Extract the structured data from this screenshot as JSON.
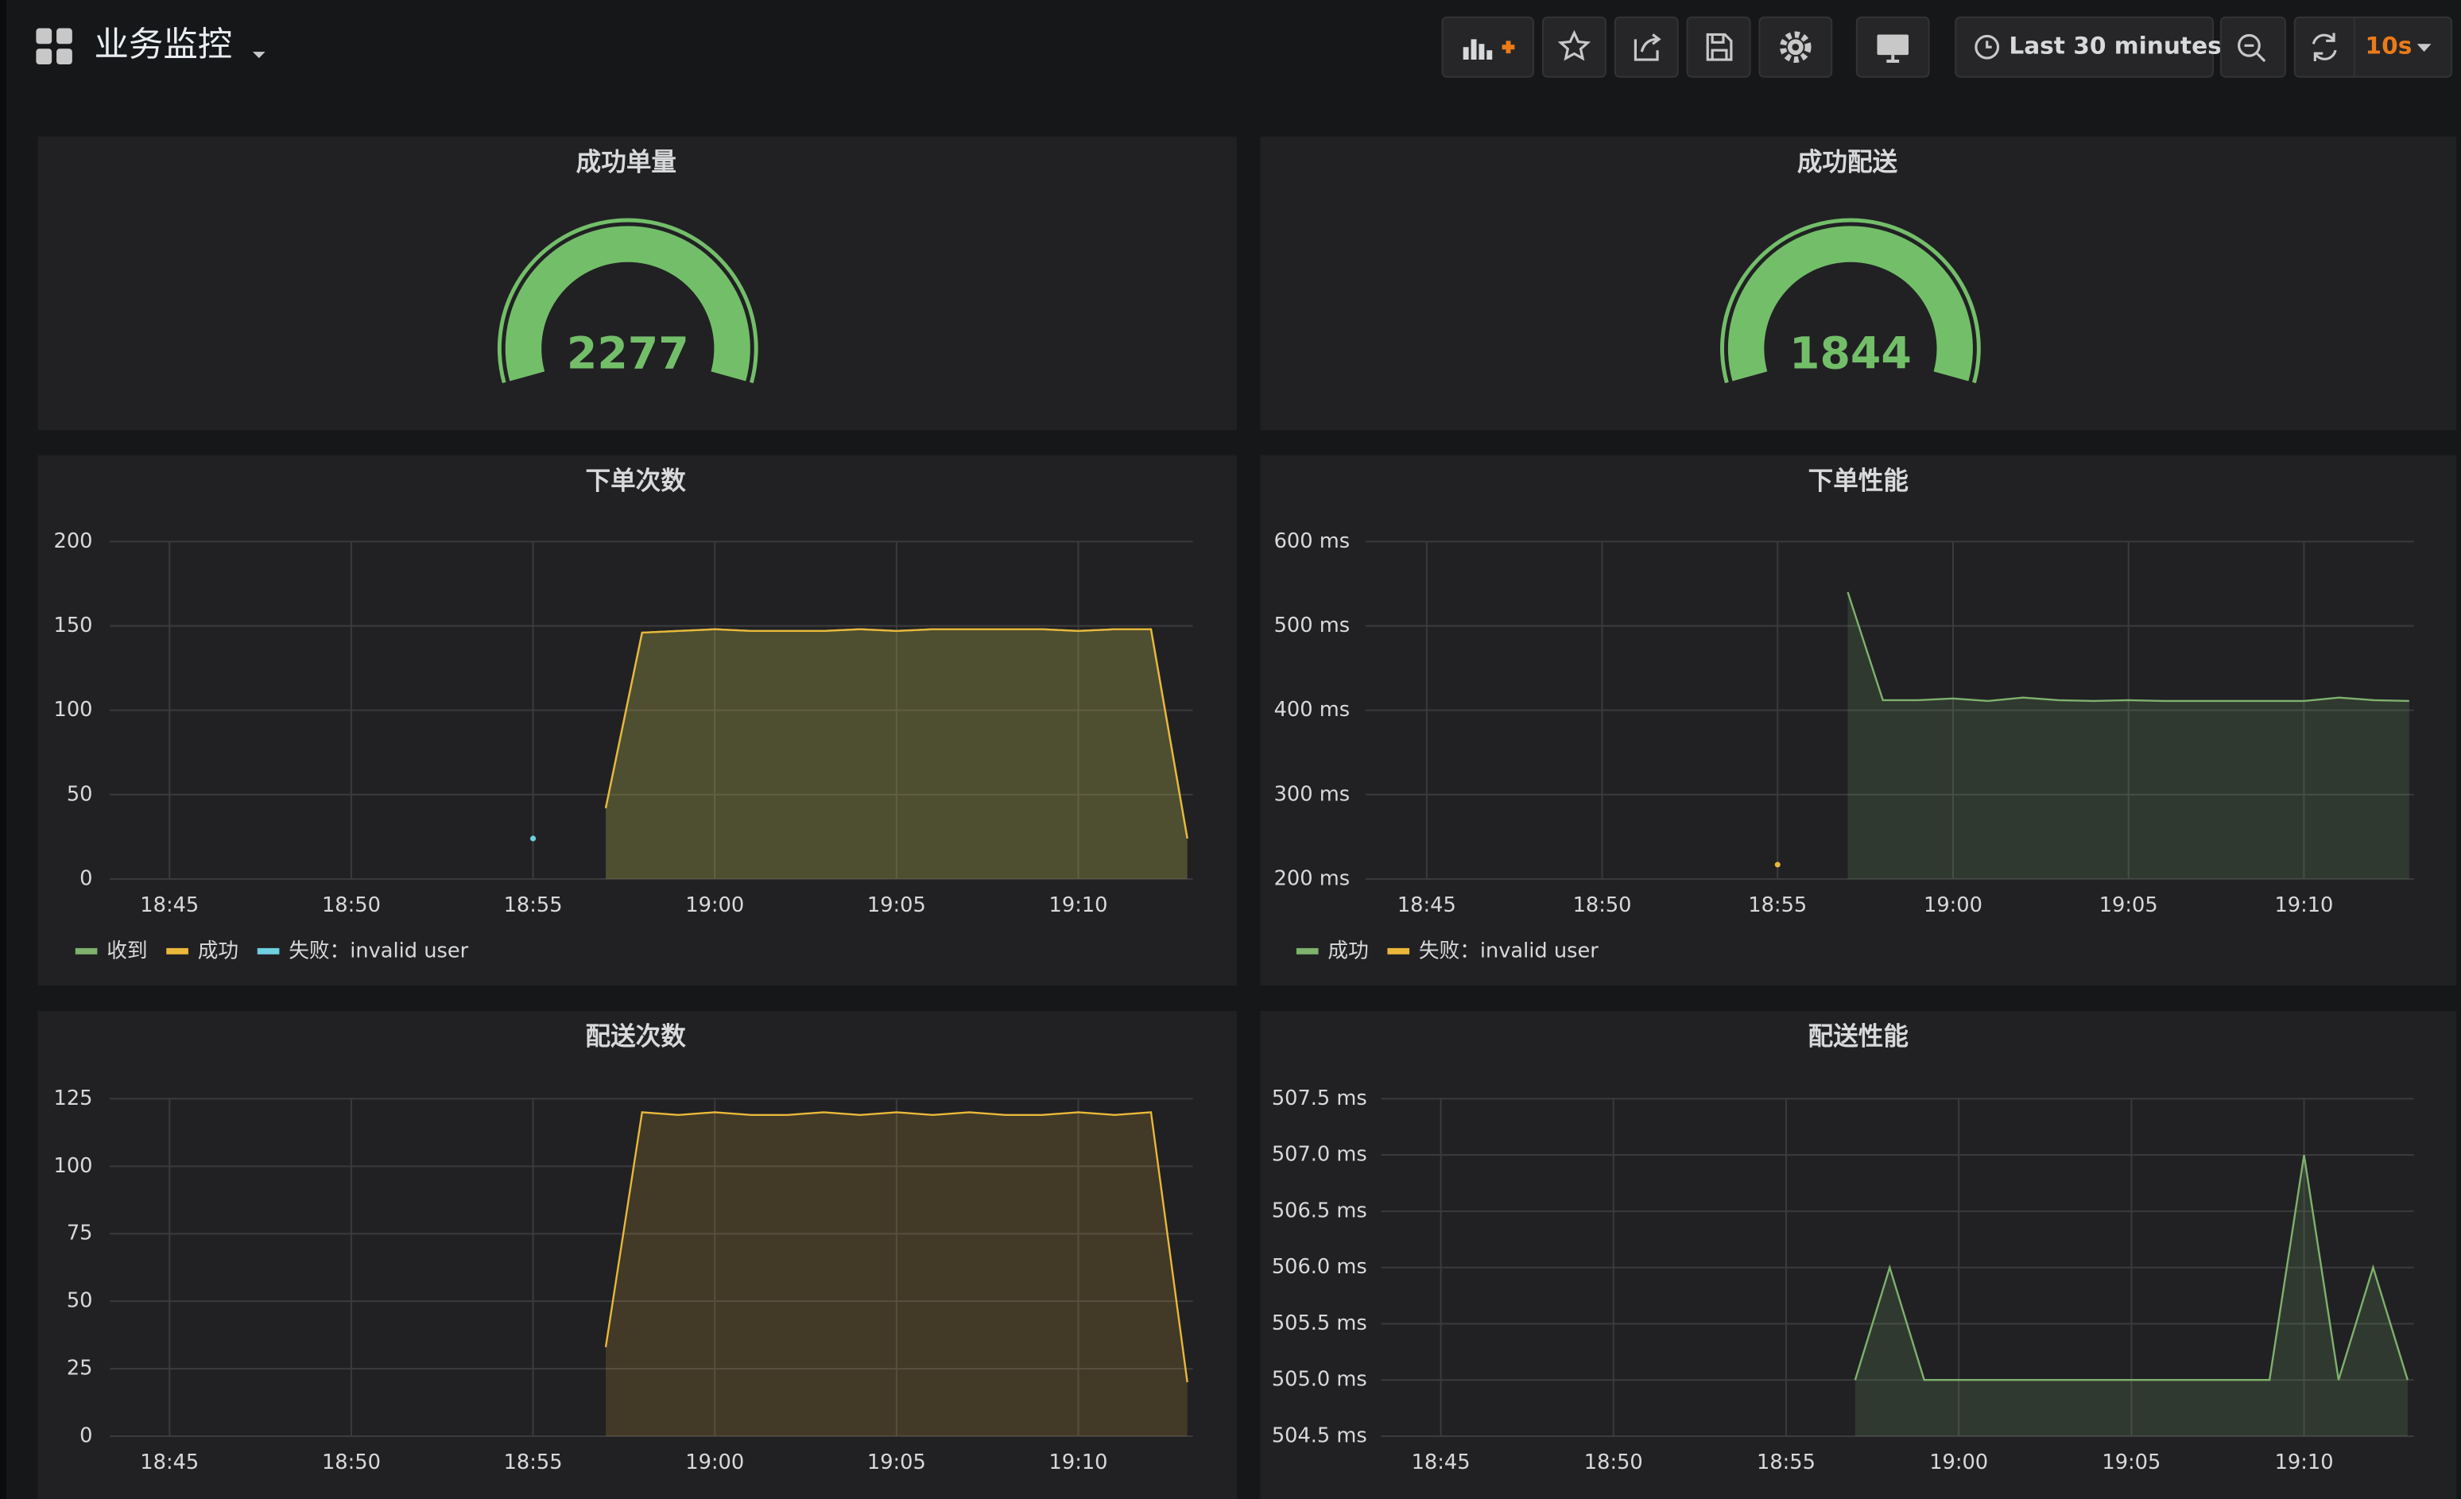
{
  "header": {
    "title": "业务监控",
    "time_range": "Last 30 minutes",
    "refresh": "10s"
  },
  "gauges": [
    {
      "title": "成功单量",
      "value": 2277,
      "color": "#73bf69"
    },
    {
      "title": "成功配送",
      "value": 1844,
      "color": "#73bf69"
    }
  ],
  "chart_data": [
    {
      "type": "line",
      "title": "下单次数",
      "x": [
        "18:55",
        "18:56",
        "18:57",
        "18:58",
        "18:59",
        "19:00",
        "19:01",
        "19:02",
        "19:03",
        "19:04",
        "19:05",
        "19:06",
        "19:07",
        "19:08",
        "19:09",
        "19:10",
        "19:11",
        "19:12",
        "19:13"
      ],
      "series": [
        {
          "name": "收到",
          "color": "#7eb26d",
          "fill": true,
          "values": [
            null,
            null,
            42,
            146,
            147,
            148,
            147,
            147,
            147,
            148,
            147,
            148,
            148,
            148,
            148,
            147,
            148,
            148,
            24
          ]
        },
        {
          "name": "成功",
          "color": "#eab839",
          "fill": true,
          "values": [
            null,
            null,
            42,
            146,
            147,
            148,
            147,
            147,
            147,
            148,
            147,
            148,
            148,
            148,
            148,
            147,
            148,
            148,
            24
          ]
        },
        {
          "name": "失败：invalid user",
          "color": "#6ed0e0",
          "fill": false,
          "values": [
            24,
            null,
            null,
            null,
            null,
            null,
            null,
            null,
            null,
            null,
            null,
            null,
            null,
            null,
            null,
            null,
            null,
            null,
            null
          ]
        }
      ],
      "xlim": [
        "18:43",
        "19:13"
      ],
      "xticks": [
        "18:45",
        "18:50",
        "18:55",
        "19:00",
        "19:05",
        "19:10"
      ],
      "ylim": [
        0,
        200
      ],
      "yticks": [
        0,
        50,
        100,
        150,
        200
      ],
      "grid": true
    },
    {
      "type": "line",
      "title": "下单性能",
      "x": [
        "18:55",
        "18:56",
        "18:57",
        "18:58",
        "18:59",
        "19:00",
        "19:01",
        "19:02",
        "19:03",
        "19:04",
        "19:05",
        "19:06",
        "19:07",
        "19:08",
        "19:09",
        "19:10",
        "19:11",
        "19:12",
        "19:13"
      ],
      "series": [
        {
          "name": "成功",
          "color": "#7eb26d",
          "fill": true,
          "values": [
            null,
            null,
            540,
            412,
            412,
            414,
            411,
            415,
            412,
            411,
            412,
            411,
            411,
            411,
            411,
            411,
            415,
            412,
            411
          ]
        },
        {
          "name": "失败：invalid user",
          "color": "#eab839",
          "fill": false,
          "values": [
            217,
            null,
            null,
            null,
            null,
            null,
            null,
            null,
            null,
            null,
            null,
            null,
            null,
            null,
            null,
            null,
            null,
            null,
            null
          ]
        }
      ],
      "xlim": [
        "18:43",
        "19:13"
      ],
      "xticks": [
        "18:45",
        "18:50",
        "18:55",
        "19:00",
        "19:05",
        "19:10"
      ],
      "ylim": [
        200,
        600
      ],
      "yticks": [
        {
          "value": 200,
          "label": "200 ms"
        },
        {
          "value": 300,
          "label": "300 ms"
        },
        {
          "value": 400,
          "label": "400 ms"
        },
        {
          "value": 500,
          "label": "500 ms"
        },
        {
          "value": 600,
          "label": "600 ms"
        }
      ],
      "grid": true
    },
    {
      "type": "line",
      "title": "配送次数",
      "x": [
        "18:55",
        "18:56",
        "18:57",
        "18:58",
        "18:59",
        "19:00",
        "19:01",
        "19:02",
        "19:03",
        "19:04",
        "19:05",
        "19:06",
        "19:07",
        "19:08",
        "19:09",
        "19:10",
        "19:11",
        "19:12",
        "19:13"
      ],
      "series": [
        {
          "color": "#eab839",
          "fill": true,
          "values": [
            null,
            null,
            33,
            120,
            119,
            120,
            119,
            119,
            120,
            119,
            120,
            119,
            120,
            119,
            119,
            120,
            119,
            120,
            20
          ]
        }
      ],
      "xlim": [
        "18:43",
        "19:13"
      ],
      "xticks": [
        "18:45",
        "18:50",
        "18:55",
        "19:00",
        "19:05",
        "19:10"
      ],
      "ylim": [
        0,
        125
      ],
      "yticks": [
        0,
        25,
        50,
        75,
        100,
        125
      ],
      "grid": true
    },
    {
      "type": "line",
      "title": "配送性能",
      "x": [
        "18:57",
        "18:58",
        "18:59",
        "19:00",
        "19:01",
        "19:02",
        "19:03",
        "19:04",
        "19:05",
        "19:06",
        "19:07",
        "19:08",
        "19:09",
        "19:10",
        "19:11",
        "19:12",
        "19:13"
      ],
      "series": [
        {
          "color": "#7eb26d",
          "fill": true,
          "values": [
            505,
            506,
            505,
            505,
            505,
            505,
            505,
            505,
            505,
            505,
            505,
            505,
            505,
            507,
            505,
            506,
            505
          ]
        }
      ],
      "xlim": [
        "18:43",
        "19:13"
      ],
      "xticks": [
        "18:45",
        "18:50",
        "18:55",
        "19:00",
        "19:05",
        "19:10"
      ],
      "ylim": [
        504.5,
        507.5
      ],
      "yticks": [
        {
          "value": 504.5,
          "label": "504.5 ms"
        },
        {
          "value": 505,
          "label": "505.0 ms"
        },
        {
          "value": 505.5,
          "label": "505.5 ms"
        },
        {
          "value": 506,
          "label": "506.0 ms"
        },
        {
          "value": 506.5,
          "label": "506.5 ms"
        },
        {
          "value": 507,
          "label": "507.0 ms"
        },
        {
          "value": 507.5,
          "label": "507.5 ms"
        }
      ],
      "grid": true
    }
  ]
}
